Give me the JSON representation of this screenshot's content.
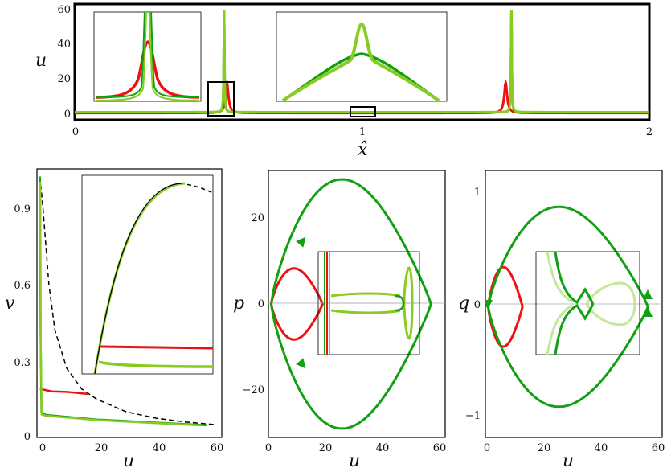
{
  "colors": {
    "red": "#ee1111",
    "green": "#11a011",
    "lime": "#88cc22",
    "pale": "#c4e89a",
    "dash": "#000000"
  },
  "chart_data": [
    {
      "id": "profile",
      "type": "line",
      "xlabel": "x̂",
      "ylabel": "u",
      "xlim": [
        0,
        2
      ],
      "ylim": [
        -3,
        62
      ],
      "xticks": [
        "0",
        "1",
        "2"
      ],
      "yticks": [
        "0",
        "20",
        "40",
        "60"
      ],
      "series": [
        {
          "color": "red",
          "baseline": 0.8,
          "peaks": [
            {
              "x": 0.53,
              "height": 17,
              "width": 0.006
            },
            {
              "x": 1.5,
              "height": 17,
              "width": 0.006
            }
          ]
        },
        {
          "color": "green",
          "baseline": 1.2,
          "peaks": [
            {
              "x": 0.52,
              "height": 57,
              "width": 0.0015
            },
            {
              "x": 1.52,
              "height": 57,
              "width": 0.0015
            }
          ]
        },
        {
          "color": "lime",
          "baseline": 1.3,
          "peaks": [
            {
              "x": 0.52,
              "height": 57,
              "width": 0.0015
            },
            {
              "x": 1.52,
              "height": 57,
              "width": 0.0015
            }
          ]
        }
      ],
      "zoom_boxes": [
        {
          "x": [
            0.475,
            0.56
          ],
          "y": [
            -2,
            18
          ]
        },
        {
          "x": 0.96,
          "y": [
            -2,
            3
          ]
        }
      ],
      "insets": [
        "narrow and wide peaks (red vs green)",
        "broad hump with sharp central peak (green vs lime)"
      ]
    },
    {
      "id": "uv",
      "type": "line",
      "xlabel": "u",
      "ylabel": "v",
      "xlim": [
        0,
        62
      ],
      "ylim": [
        0,
        1.05
      ],
      "xticks": [
        "0",
        "20",
        "40",
        "60"
      ],
      "yticks": [
        "0",
        "0.3",
        "0.6",
        "0.9"
      ],
      "series": [
        {
          "color": "dash",
          "style": "dashed",
          "points": [
            [
              1,
              1.02
            ],
            [
              2,
              0.9
            ],
            [
              4,
              0.6
            ],
            [
              6,
              0.42
            ],
            [
              10,
              0.27
            ],
            [
              15,
              0.19
            ],
            [
              20,
              0.15
            ],
            [
              30,
              0.1
            ],
            [
              40,
              0.075
            ],
            [
              50,
              0.06
            ],
            [
              60,
              0.05
            ]
          ]
        },
        {
          "color": "red",
          "points": [
            [
              1,
              0.19
            ],
            [
              5,
              0.18
            ],
            [
              10,
              0.178
            ],
            [
              17,
              0.17
            ]
          ]
        },
        {
          "color": "green",
          "points": [
            [
              1,
              1.02
            ],
            [
              1.2,
              0.4
            ],
            [
              1.5,
              0.1
            ],
            [
              3,
              0.088
            ],
            [
              20,
              0.07
            ],
            [
              40,
              0.058
            ],
            [
              57,
              0.048
            ]
          ]
        },
        {
          "color": "lime",
          "points": [
            [
              1.1,
              1.0
            ],
            [
              1.3,
              0.35
            ],
            [
              1.6,
              0.09
            ],
            [
              3,
              0.085
            ],
            [
              20,
              0.068
            ],
            [
              40,
              0.056
            ],
            [
              55,
              0.047
            ]
          ]
        }
      ]
    },
    {
      "id": "up",
      "type": "line",
      "xlabel": "u",
      "ylabel": "p",
      "xlim": [
        0,
        62
      ],
      "ylim": [
        -30,
        30
      ],
      "xticks": [
        "0",
        "20",
        "40",
        "60"
      ],
      "yticks": [
        "−20",
        "0",
        "20"
      ],
      "series": [
        {
          "color": "red",
          "loop": {
            "u0": 1,
            "umax": 19,
            "pmax": 8
          }
        },
        {
          "color": "green",
          "loop": {
            "u0": 1,
            "umax": 57,
            "pmax": 28
          }
        }
      ]
    },
    {
      "id": "uq",
      "type": "line",
      "xlabel": "u",
      "ylabel": "q",
      "xlim": [
        0,
        62
      ],
      "ylim": [
        -1.15,
        1.2
      ],
      "xticks": [
        "0",
        "20",
        "40",
        "60"
      ],
      "yticks": [
        "−1",
        "0",
        "1"
      ],
      "series": [
        {
          "color": "red",
          "loop": {
            "u0": 1,
            "umax": 13,
            "qmax": 0.35
          }
        },
        {
          "color": "green",
          "loop": {
            "u0": 1,
            "umax": 57,
            "qmax": 0.88
          }
        }
      ]
    }
  ]
}
